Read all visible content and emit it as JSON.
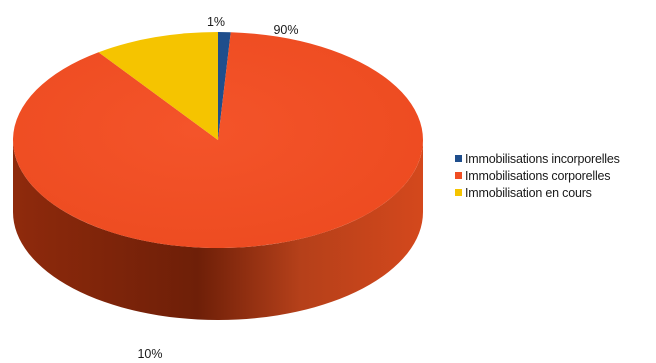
{
  "chart_data": {
    "type": "pie",
    "title": "",
    "slices": [
      {
        "label": "Immobilisations incorporelles",
        "value": 1,
        "value_label": "1%",
        "color": "#1f4e8c",
        "side_color": "#163a6a"
      },
      {
        "label": "Immobilisations corporelles",
        "value": 90,
        "value_label": "90%",
        "color": "#f04e23",
        "side_color": "#a8300f"
      },
      {
        "label": "Immobilisation en cours",
        "value": 10,
        "value_label": "10%",
        "color": "#f5c400",
        "side_color": "#b89100"
      }
    ],
    "legend_position": "right",
    "style": "3d"
  }
}
